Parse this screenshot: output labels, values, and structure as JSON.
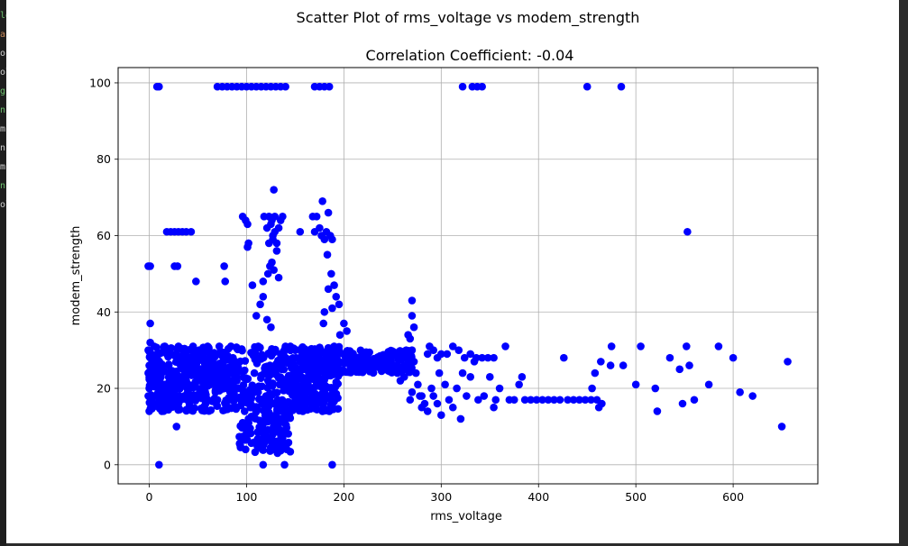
{
  "figure": {
    "suptitle": "Scatter Plot of rms_voltage vs modem_strength"
  },
  "chart_data": {
    "type": "scatter",
    "title": "Correlation Coefficient: -0.04",
    "xlabel": "rms_voltage",
    "ylabel": "modem_strength",
    "xlim": [
      -32,
      687
    ],
    "ylim": [
      -5,
      104
    ],
    "xticks": [
      0,
      100,
      200,
      300,
      400,
      500,
      600
    ],
    "yticks": [
      0,
      20,
      40,
      60,
      80,
      100
    ],
    "grid": true,
    "marker_color": "#0000ff",
    "series": [
      {
        "points": [
          [
            8,
            99
          ],
          [
            10,
            99
          ],
          [
            70,
            99
          ],
          [
            75,
            99
          ],
          [
            80,
            99
          ],
          [
            85,
            99
          ],
          [
            90,
            99
          ],
          [
            95,
            99
          ],
          [
            100,
            99
          ],
          [
            105,
            99
          ],
          [
            110,
            99
          ],
          [
            115,
            99
          ],
          [
            120,
            99
          ],
          [
            125,
            99
          ],
          [
            130,
            99
          ],
          [
            135,
            99
          ],
          [
            140,
            99
          ],
          [
            170,
            99
          ],
          [
            175,
            99
          ],
          [
            180,
            99
          ],
          [
            185,
            99
          ],
          [
            322,
            99
          ],
          [
            332,
            99
          ],
          [
            337,
            99
          ],
          [
            342,
            99
          ],
          [
            450,
            99
          ],
          [
            485,
            99
          ],
          [
            18,
            61
          ],
          [
            22,
            61
          ],
          [
            26,
            61
          ],
          [
            30,
            61
          ],
          [
            34,
            61
          ],
          [
            38,
            61
          ],
          [
            43,
            61
          ],
          [
            553,
            61
          ],
          [
            -1,
            52
          ],
          [
            1,
            52
          ],
          [
            26,
            52
          ],
          [
            29,
            52
          ],
          [
            48,
            48
          ],
          [
            77,
            52
          ],
          [
            78,
            48
          ],
          [
            102,
            58
          ],
          [
            101,
            57
          ],
          [
            106,
            47
          ],
          [
            114,
            42
          ],
          [
            117,
            48
          ],
          [
            122,
            50
          ],
          [
            126,
            53
          ],
          [
            128,
            51
          ],
          [
            131,
            56
          ],
          [
            133,
            49
          ],
          [
            121,
            38
          ],
          [
            125,
            36
          ],
          [
            110,
            39
          ],
          [
            117,
            44
          ],
          [
            96,
            65
          ],
          [
            99,
            64
          ],
          [
            101,
            63
          ],
          [
            118,
            65
          ],
          [
            121,
            62
          ],
          [
            123,
            65
          ],
          [
            125,
            63
          ],
          [
            127,
            60
          ],
          [
            129,
            65
          ],
          [
            131,
            58
          ],
          [
            133,
            62
          ],
          [
            135,
            64
          ],
          [
            137,
            65
          ],
          [
            123,
            58
          ],
          [
            127,
            59
          ],
          [
            126,
            64
          ],
          [
            129,
            61
          ],
          [
            124,
            52
          ],
          [
            128,
            72
          ],
          [
            155,
            61
          ],
          [
            168,
            65
          ],
          [
            172,
            65
          ],
          [
            170,
            61
          ],
          [
            175,
            62
          ],
          [
            177,
            60
          ],
          [
            178,
            69
          ],
          [
            180,
            59
          ],
          [
            182,
            61
          ],
          [
            184,
            66
          ],
          [
            186,
            60
          ],
          [
            188,
            59
          ],
          [
            183,
            55
          ],
          [
            187,
            50
          ],
          [
            190,
            47
          ],
          [
            192,
            44
          ],
          [
            195,
            42
          ],
          [
            180,
            40
          ],
          [
            184,
            46
          ],
          [
            188,
            41
          ],
          [
            179,
            37
          ],
          [
            1,
            37
          ],
          [
            1,
            32
          ],
          [
            -1,
            30
          ],
          [
            1,
            28
          ],
          [
            0,
            26
          ],
          [
            -1,
            24
          ],
          [
            1,
            22
          ],
          [
            0,
            20
          ],
          [
            -1,
            18
          ],
          [
            1,
            16
          ],
          [
            0,
            14
          ],
          [
            5,
            31
          ],
          [
            8,
            29
          ],
          [
            10,
            27
          ],
          [
            6,
            25
          ],
          [
            12,
            23
          ],
          [
            14,
            20
          ],
          [
            9,
            18
          ],
          [
            11,
            16
          ],
          [
            13,
            14
          ],
          [
            16,
            31
          ],
          [
            18,
            29
          ],
          [
            20,
            26
          ],
          [
            22,
            22
          ],
          [
            24,
            18
          ],
          [
            26,
            16
          ],
          [
            28,
            10
          ],
          [
            30,
            31
          ],
          [
            33,
            28
          ],
          [
            36,
            25
          ],
          [
            38,
            22
          ],
          [
            40,
            19
          ],
          [
            42,
            17
          ],
          [
            45,
            31
          ],
          [
            48,
            28
          ],
          [
            50,
            25
          ],
          [
            52,
            22
          ],
          [
            55,
            19
          ],
          [
            58,
            16
          ],
          [
            60,
            31
          ],
          [
            62,
            28
          ],
          [
            64,
            25
          ],
          [
            66,
            22
          ],
          [
            68,
            19
          ],
          [
            70,
            17
          ],
          [
            72,
            31
          ],
          [
            74,
            29
          ],
          [
            76,
            26
          ],
          [
            78,
            23
          ],
          [
            80,
            20
          ],
          [
            82,
            17
          ],
          [
            84,
            31
          ],
          [
            86,
            28
          ],
          [
            88,
            25
          ],
          [
            90,
            22
          ],
          [
            92,
            20
          ],
          [
            94,
            17
          ],
          [
            96,
            11
          ],
          [
            98,
            14
          ],
          [
            100,
            8
          ],
          [
            99,
            4
          ],
          [
            102,
            12
          ],
          [
            104,
            16
          ],
          [
            106,
            20
          ],
          [
            108,
            24
          ],
          [
            110,
            28
          ],
          [
            112,
            31
          ],
          [
            114,
            6
          ],
          [
            116,
            10
          ],
          [
            118,
            14
          ],
          [
            120,
            18
          ],
          [
            122,
            22
          ],
          [
            124,
            26
          ],
          [
            126,
            30
          ],
          [
            128,
            9
          ],
          [
            130,
            13
          ],
          [
            132,
            17
          ],
          [
            134,
            21
          ],
          [
            136,
            25
          ],
          [
            138,
            29
          ],
          [
            140,
            31
          ],
          [
            135,
            5
          ],
          [
            137,
            7
          ],
          [
            139,
            11
          ],
          [
            127,
            8
          ],
          [
            131,
            12
          ],
          [
            119,
            6
          ],
          [
            145,
            31
          ],
          [
            150,
            30
          ],
          [
            155,
            27
          ],
          [
            160,
            25
          ],
          [
            165,
            28
          ],
          [
            170,
            30
          ],
          [
            175,
            26
          ],
          [
            180,
            24
          ],
          [
            185,
            29
          ],
          [
            190,
            31
          ],
          [
            195,
            30
          ],
          [
            200,
            29
          ],
          [
            205,
            28
          ],
          [
            210,
            28
          ],
          [
            215,
            27
          ],
          [
            220,
            27
          ],
          [
            225,
            27
          ],
          [
            230,
            26
          ],
          [
            235,
            26
          ],
          [
            240,
            26
          ],
          [
            245,
            25
          ],
          [
            250,
            25
          ],
          [
            255,
            24
          ],
          [
            258,
            22
          ],
          [
            262,
            26
          ],
          [
            264,
            30
          ],
          [
            266,
            34
          ],
          [
            268,
            33
          ],
          [
            270,
            30
          ],
          [
            272,
            27
          ],
          [
            274,
            24
          ],
          [
            276,
            21
          ],
          [
            278,
            18
          ],
          [
            280,
            15
          ],
          [
            283,
            16
          ],
          [
            286,
            29
          ],
          [
            288,
            31
          ],
          [
            292,
            30
          ],
          [
            296,
            28
          ],
          [
            300,
            29
          ],
          [
            306,
            29
          ],
          [
            312,
            31
          ],
          [
            318,
            30
          ],
          [
            324,
            28
          ],
          [
            330,
            29
          ],
          [
            336,
            28
          ],
          [
            342,
            28
          ],
          [
            348,
            28
          ],
          [
            354,
            28
          ],
          [
            150,
            17
          ],
          [
            155,
            15
          ],
          [
            160,
            18
          ],
          [
            165,
            19
          ],
          [
            172,
            17
          ],
          [
            178,
            14
          ],
          [
            185,
            14
          ],
          [
            188,
            20
          ],
          [
            196,
            34
          ],
          [
            200,
            37
          ],
          [
            203,
            35
          ],
          [
            260,
            28
          ],
          [
            262,
            23
          ],
          [
            270,
            43
          ],
          [
            270,
            39
          ],
          [
            272,
            36
          ],
          [
            268,
            17
          ],
          [
            270,
            19
          ],
          [
            280,
            18
          ],
          [
            286,
            14
          ],
          [
            290,
            20
          ],
          [
            292,
            18
          ],
          [
            296,
            16
          ],
          [
            298,
            24
          ],
          [
            300,
            13
          ],
          [
            304,
            21
          ],
          [
            308,
            17
          ],
          [
            312,
            15
          ],
          [
            316,
            20
          ],
          [
            320,
            12
          ],
          [
            322,
            24
          ],
          [
            326,
            18
          ],
          [
            330,
            23
          ],
          [
            334,
            27
          ],
          [
            338,
            17
          ],
          [
            344,
            18
          ],
          [
            350,
            23
          ],
          [
            354,
            15
          ],
          [
            356,
            17
          ],
          [
            360,
            20
          ],
          [
            366,
            31
          ],
          [
            370,
            17
          ],
          [
            375,
            17
          ],
          [
            380,
            21
          ],
          [
            383,
            23
          ],
          [
            386,
            17
          ],
          [
            392,
            17
          ],
          [
            398,
            17
          ],
          [
            404,
            17
          ],
          [
            410,
            17
          ],
          [
            416,
            17
          ],
          [
            422,
            17
          ],
          [
            426,
            28
          ],
          [
            430,
            17
          ],
          [
            436,
            17
          ],
          [
            442,
            17
          ],
          [
            448,
            17
          ],
          [
            454,
            17
          ],
          [
            460,
            17
          ],
          [
            462,
            15
          ],
          [
            465,
            16
          ],
          [
            455,
            20
          ],
          [
            458,
            24
          ],
          [
            464,
            27
          ],
          [
            474,
            26
          ],
          [
            475,
            31
          ],
          [
            487,
            26
          ],
          [
            500,
            21
          ],
          [
            505,
            31
          ],
          [
            520,
            20
          ],
          [
            522,
            14
          ],
          [
            535,
            28
          ],
          [
            545,
            25
          ],
          [
            548,
            16
          ],
          [
            552,
            31
          ],
          [
            555,
            26
          ],
          [
            560,
            17
          ],
          [
            575,
            21
          ],
          [
            585,
            31
          ],
          [
            600,
            28
          ],
          [
            607,
            19
          ],
          [
            620,
            18
          ],
          [
            650,
            10
          ],
          [
            656,
            27
          ],
          [
            10,
            0
          ],
          [
            117,
            0
          ],
          [
            139,
            0
          ],
          [
            188,
            0
          ]
        ]
      }
    ]
  },
  "sidebar_fragments": [
    {
      "text": "ld",
      "color": "#6ec26e"
    },
    {
      "text": "a",
      "color": "#c98a5a"
    },
    {
      "text": "o",
      "color": "#cfcfcf"
    },
    {
      "text": "ol",
      "color": "#cfcfcf"
    },
    {
      "text": "g",
      "color": "#6ec26e"
    },
    {
      "text": "n",
      "color": "#6ec26e"
    },
    {
      "text": "m",
      "color": "#cfcfcf"
    },
    {
      "text": "n",
      "color": "#cfcfcf"
    },
    {
      "text": "m",
      "color": "#cfcfcf"
    },
    {
      "text": "n",
      "color": "#6ec26e"
    },
    {
      "text": "ol",
      "color": "#cfcfcf"
    }
  ]
}
